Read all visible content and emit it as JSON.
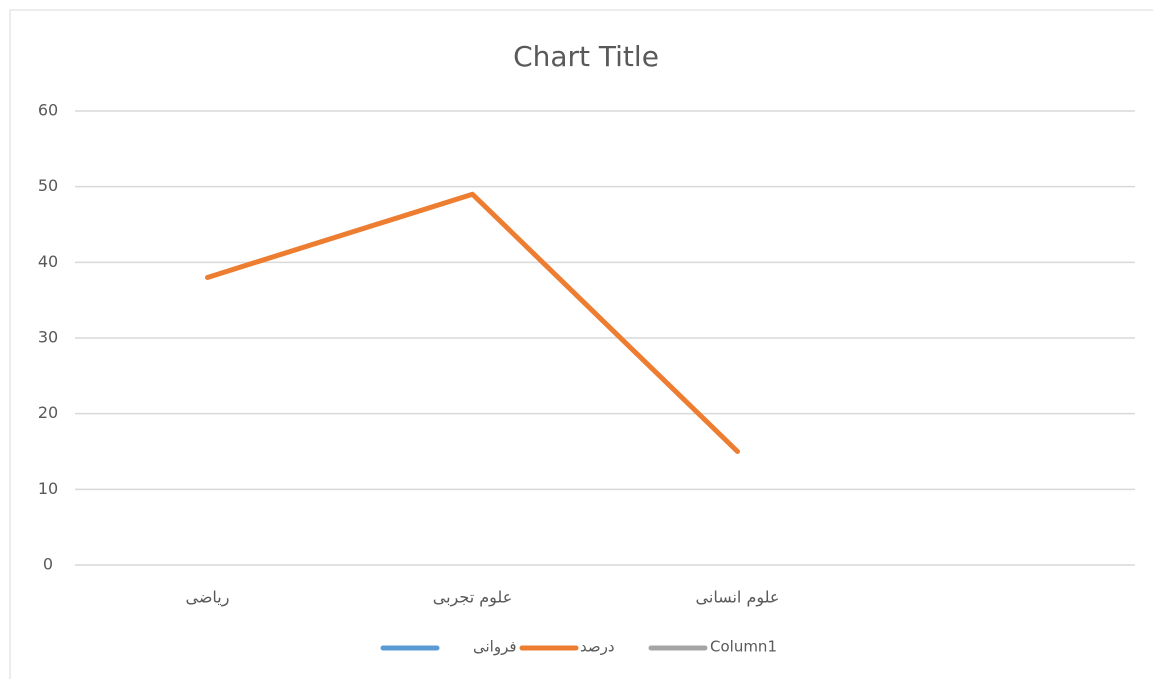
{
  "chart_data": {
    "type": "line",
    "title": "Chart Title",
    "categories": [
      "ریاضی",
      "علوم تجربی",
      "علوم انسانی",
      null
    ],
    "series": [
      {
        "name": "فروانی",
        "color": "#5b9bd5",
        "values": [
          null,
          null,
          null,
          null
        ]
      },
      {
        "name": "درصد",
        "color": "#ed7d31",
        "values": [
          38,
          49,
          15,
          null
        ]
      },
      {
        "name": "Column1",
        "color": "#a5a5a5",
        "values": [
          null,
          null,
          null,
          null
        ]
      }
    ],
    "ylim": [
      0,
      60
    ],
    "yticks": [
      0,
      10,
      20,
      30,
      40,
      50,
      60
    ],
    "grid": true,
    "legend": "bottom"
  }
}
